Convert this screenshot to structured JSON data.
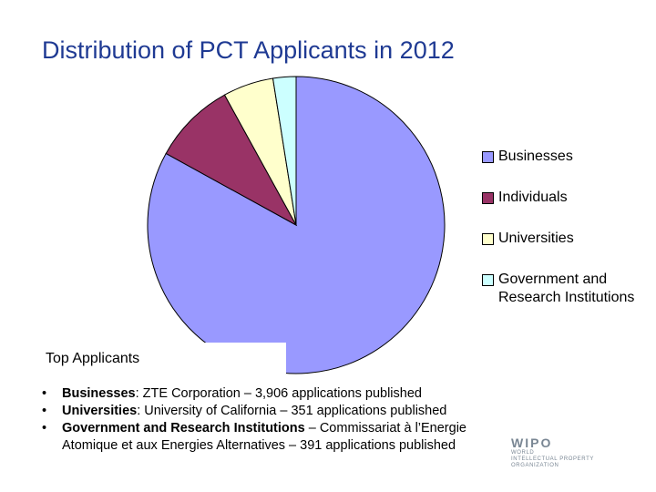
{
  "chart_data": {
    "type": "pie",
    "title": "Distribution of PCT Applicants in 2012",
    "slices": [
      {
        "label": "Businesses",
        "value": 83.0,
        "color": "#9999ff"
      },
      {
        "label": "Individuals",
        "value": 9.0,
        "color": "#993366"
      },
      {
        "label": "Universities",
        "value": 5.5,
        "color": "#ffffcc"
      },
      {
        "label": "Government and Research Institutions",
        "value": 2.5,
        "color": "#ccffff"
      }
    ],
    "legend": {
      "position": "right",
      "entries": [
        {
          "lines": [
            "Businesses"
          ]
        },
        {
          "lines": [
            "Individuals"
          ]
        },
        {
          "lines": [
            "Universities"
          ]
        },
        {
          "lines": [
            "Government and",
            "Research Institutions"
          ]
        }
      ]
    }
  },
  "top_applicants": {
    "heading": "Top Applicants",
    "bullets": [
      {
        "category": "Businesses",
        "text": ": ZTE Corporation – 3,906 applications published"
      },
      {
        "category": "Universities",
        "text": ":  University of California – 351 applications published"
      },
      {
        "category": "Government and Research Institutions",
        "text": " – Commissariat à l’Energie",
        "continuation": "Atomique et aux Energies Alternatives – 391 applications published"
      }
    ]
  },
  "logo": {
    "name": "WIPO",
    "lines": [
      "WORLD",
      "INTELLECTUAL PROPERTY",
      "ORGANIZATION"
    ]
  }
}
